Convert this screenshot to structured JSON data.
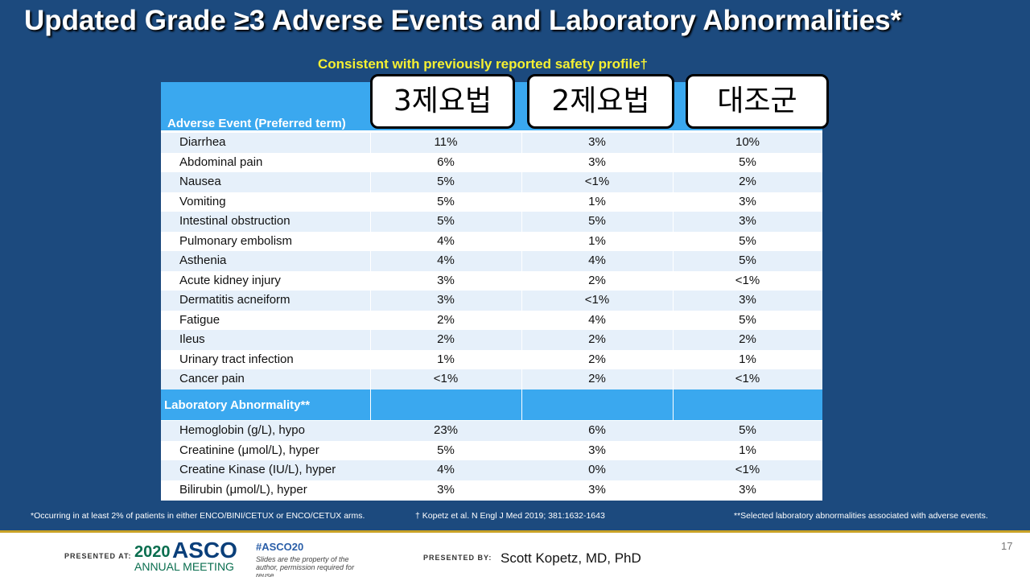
{
  "header": {
    "title": "Updated Grade ≥3 Adverse Events and Laboratory Abnormalities*",
    "subtitle": "Consistent with previously reported safety profile†"
  },
  "table": {
    "first_header": "Adverse Event (Preferred term)",
    "column_labels": [
      "3제요법",
      "2제요법",
      "대조군"
    ],
    "rows": [
      [
        "Diarrhea",
        "11%",
        "3%",
        "10%"
      ],
      [
        "Abdominal pain",
        "6%",
        "3%",
        "5%"
      ],
      [
        "Nausea",
        "5%",
        "<1%",
        "2%"
      ],
      [
        "Vomiting",
        "5%",
        "1%",
        "3%"
      ],
      [
        "Intestinal obstruction",
        "5%",
        "5%",
        "3%"
      ],
      [
        "Pulmonary embolism",
        "4%",
        "1%",
        "5%"
      ],
      [
        "Asthenia",
        "4%",
        "4%",
        "5%"
      ],
      [
        "Acute kidney injury",
        "3%",
        "2%",
        "<1%"
      ],
      [
        "Dermatitis acneiform",
        "3%",
        "<1%",
        "3%"
      ],
      [
        "Fatigue",
        "2%",
        "4%",
        "5%"
      ],
      [
        "Ileus",
        "2%",
        "2%",
        "2%"
      ],
      [
        "Urinary tract infection",
        "1%",
        "2%",
        "1%"
      ],
      [
        "Cancer pain",
        "<1%",
        "2%",
        "<1%"
      ]
    ],
    "lab_header": "Laboratory Abnormality**",
    "lab_rows": [
      [
        "Hemoglobin (g/L), hypo",
        "23%",
        "6%",
        "5%"
      ],
      [
        "Creatinine (μmol/L), hyper",
        "5%",
        "3%",
        "1%"
      ],
      [
        "Creatine Kinase (IU/L), hyper",
        "4%",
        "0%",
        "<1%"
      ],
      [
        "Bilirubin (μmol/L), hyper",
        "3%",
        "3%",
        "3%"
      ]
    ]
  },
  "footnotes": [
    "*Occurring in at least 2% of patients in either ENCO/BINI/CETUX  or ENCO/CETUX arms.",
    "† Kopetz et al. N Engl J Med 2019; 381:1632-1643",
    "**Selected laboratory abnormalities associated with adverse events."
  ],
  "footer": {
    "presented_at": "PRESENTED AT:",
    "year": "2020",
    "asco": "ASCO",
    "meeting": "ANNUAL MEETING",
    "hashtag": "#ASCO20",
    "rights": "Slides are the property of the author, permission required for reuse.",
    "presented_by": "PRESENTED BY:",
    "presenter": "Scott Kopetz, MD, PhD",
    "page": "17"
  }
}
